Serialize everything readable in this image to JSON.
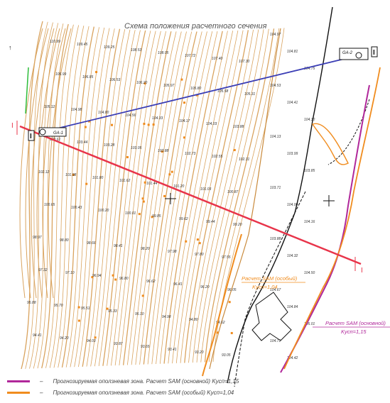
{
  "title": "Схема положения расчетного сечения",
  "section_marker": "I",
  "section_marker_right": "I",
  "markers": {
    "left_arrow": "I",
    "right_arrow": "I"
  },
  "boxes": {
    "left": "GA-1",
    "right": "GA-2"
  },
  "zone_labels": {
    "special": {
      "line1": "Расчет SAM (особый)",
      "line2": "Kусп=1,04"
    },
    "main": {
      "line1": "Расчет SAM (основной)",
      "line2": "Kусп=1,15"
    }
  },
  "legend": [
    {
      "dash": "–",
      "text": "Прогнозируемая оползневая зона. Расчет SAM (основной) Kусп=1,15",
      "color": "#b0279a"
    },
    {
      "dash": "–",
      "text": "Прогнозируемая оползневая зона. Расчет SAM (особый) Kусп=1,04",
      "color": "#f08c1e"
    }
  ],
  "colors": {
    "contour": "#d9a35e",
    "red_line": "#e8344a",
    "blue_line": "#3a3db5",
    "green": "#2dbd3a",
    "orange": "#f08c1e",
    "magenta": "#b0279a",
    "black": "#111111"
  },
  "elevations": [
    "110.99",
    "109.45",
    "109.25",
    "108.53",
    "108.05",
    "107.72",
    "107.40",
    "107.30",
    "106.99",
    "106.85",
    "106.53",
    "106.20",
    "105.97",
    "105.80",
    "105.58",
    "105.31",
    "105.12",
    "104.98",
    "104.80",
    "104.56",
    "104.33",
    "104.17",
    "104.03",
    "103.88",
    "103.61",
    "103.44",
    "103.28",
    "103.05",
    "102.88",
    "102.73",
    "102.55",
    "102.31",
    "102.12",
    "101.98",
    "101.80",
    "101.62",
    "101.44",
    "101.20",
    "101.03",
    "100.87",
    "100.65",
    "100.43",
    "100.20",
    "100.01",
    "99.85",
    "99.62",
    "99.44",
    "99.20",
    "98.97",
    "98.80",
    "98.66",
    "98.41",
    "98.20",
    "97.98",
    "97.80",
    "97.55",
    "97.32",
    "97.10",
    "96.94",
    "96.80",
    "96.62",
    "96.41",
    "96.20",
    "96.05",
    "95.88",
    "95.70",
    "95.51",
    "95.33",
    "95.10",
    "94.98",
    "94.80",
    "94.62",
    "94.41",
    "94.20",
    "94.03",
    "93.87",
    "93.65",
    "93.41",
    "93.20",
    "93.05"
  ],
  "right_elevations": [
    "104.97",
    "104.81",
    "104.75",
    "104.53",
    "104.41",
    "104.30",
    "104.13",
    "103.99",
    "103.85",
    "103.71",
    "104.00",
    "104.16",
    "103.88",
    "104.32",
    "104.50",
    "104.67",
    "104.84",
    "105.01",
    "104.71",
    "104.42"
  ]
}
